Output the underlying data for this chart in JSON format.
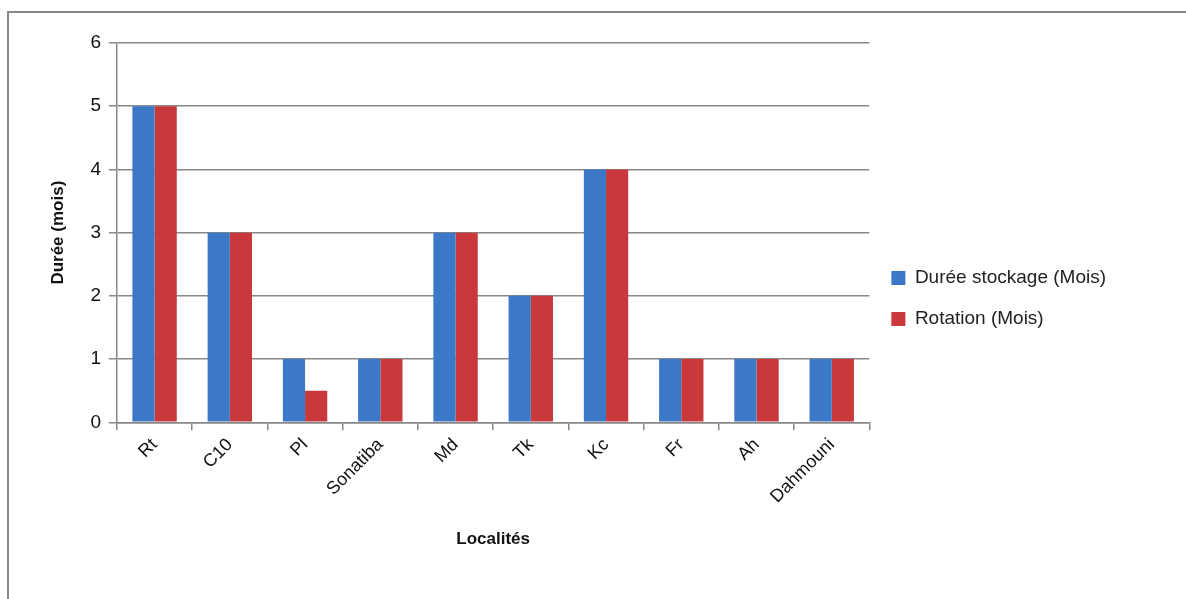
{
  "chart_data": {
    "type": "bar",
    "xlabel": "Localités",
    "ylabel": "Durée (mois)",
    "categories": [
      "Rt",
      "C10",
      "Pl",
      "Sonatiba",
      "Md",
      "Tk",
      "Kc",
      "Fr",
      "Ah",
      "Dahmouni"
    ],
    "series": [
      {
        "name": "Durée stockage (Mois)",
        "color": "#3b78c8",
        "values": [
          5,
          3,
          1,
          1,
          3,
          2,
          4,
          1,
          1,
          1
        ]
      },
      {
        "name": "Rotation (Mois)",
        "color": "#c9393c",
        "values": [
          5,
          3,
          0.5,
          1,
          3,
          2,
          4,
          1,
          1,
          1
        ]
      }
    ],
    "ylim": [
      0,
      6
    ],
    "yticks": [
      0,
      1,
      2,
      3,
      4,
      5,
      6
    ],
    "grid": "y",
    "legend": "right"
  }
}
